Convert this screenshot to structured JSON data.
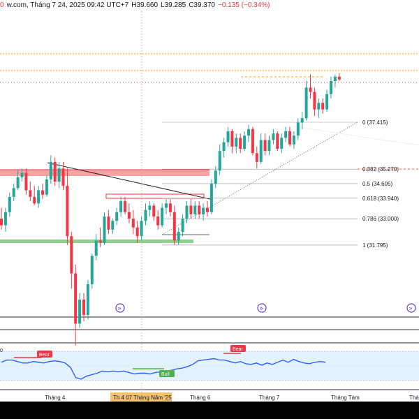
{
  "header": {
    "source": "w.com, Tháng 7 24, 2025 09:42 UTC+7",
    "open_tail": "0",
    "high": "H39.660",
    "low": "L39.285",
    "close": "C39.370",
    "change": "−0.135 (−0.34%)"
  },
  "colors": {
    "up": "#26a69a",
    "down": "#f23645",
    "fib_level": "#555555",
    "rsi_line": "#2962ff",
    "supply_zone": "#f7a3a3",
    "demand_zone": "#8ed08e",
    "bear_tag": "#f23645",
    "bull_tag": "#4caf50"
  },
  "chart_data": [
    {
      "type": "candlestick",
      "title": "",
      "x_tick_labels": [
        "Tháng 4",
        "Tháng 6",
        "Tháng 7",
        "Tháng Tám",
        "Tháng"
      ],
      "crosshair_date_label": "Th 4 07 Tháng Năm '25",
      "ylim": [
        27.2,
        43.0
      ],
      "fibonacci": [
        {
          "label": "0 (37.415)",
          "value": 37.415
        },
        {
          "label": "0.382 (35.270)",
          "value": 35.27
        },
        {
          "label": "0.5 (34.605)",
          "value": 34.605
        },
        {
          "label": "0.618 (33.940)",
          "value": 33.94
        },
        {
          "label": "0.786 (33.000)",
          "value": 33.0
        },
        {
          "label": "1 (31.795)",
          "value": 31.795
        }
      ],
      "candles": [
        [
          33.0,
          33.5,
          32.5,
          32.7
        ],
        [
          32.7,
          33.5,
          32.4,
          33.3
        ],
        [
          33.3,
          34.2,
          33.1,
          34.0
        ],
        [
          34.0,
          34.6,
          33.8,
          34.4
        ],
        [
          34.4,
          35.2,
          34.3,
          34.9
        ],
        [
          34.9,
          35.3,
          34.7,
          35.1
        ],
        [
          35.1,
          35.3,
          34.1,
          34.3
        ],
        [
          34.3,
          34.7,
          33.8,
          34.0
        ],
        [
          34.0,
          34.5,
          33.6,
          33.7
        ],
        [
          33.7,
          34.5,
          33.5,
          34.3
        ],
        [
          34.3,
          34.6,
          33.9,
          34.1
        ],
        [
          34.1,
          35.0,
          34.0,
          34.8
        ],
        [
          34.8,
          35.9,
          34.6,
          35.6
        ],
        [
          35.6,
          35.8,
          34.5,
          34.7
        ],
        [
          34.7,
          35.6,
          34.4,
          35.3
        ],
        [
          35.3,
          35.6,
          34.3,
          34.5
        ],
        [
          34.5,
          35.3,
          31.8,
          32.2
        ],
        [
          32.2,
          32.4,
          29.8,
          30.5
        ],
        [
          30.5,
          30.9,
          27.2,
          28.2
        ],
        [
          28.2,
          29.6,
          28.0,
          29.3
        ],
        [
          29.3,
          29.6,
          28.3,
          28.6
        ],
        [
          28.6,
          30.2,
          28.4,
          30.0
        ],
        [
          30.0,
          31.4,
          29.8,
          31.3
        ],
        [
          31.3,
          32.3,
          31.1,
          32.0
        ],
        [
          32.0,
          32.6,
          31.7,
          31.9
        ],
        [
          31.9,
          33.3,
          31.8,
          33.1
        ],
        [
          33.1,
          33.4,
          32.3,
          32.5
        ],
        [
          32.5,
          33.0,
          32.3,
          32.9
        ],
        [
          32.9,
          33.5,
          32.7,
          33.3
        ],
        [
          33.3,
          34.0,
          33.1,
          33.8
        ],
        [
          33.8,
          34.0,
          33.2,
          33.3
        ],
        [
          33.3,
          33.7,
          32.8,
          33.0
        ],
        [
          33.0,
          33.4,
          32.3,
          32.6
        ],
        [
          32.6,
          32.9,
          31.9,
          32.2
        ],
        [
          32.2,
          33.1,
          32.0,
          32.9
        ],
        [
          32.9,
          33.7,
          32.7,
          33.4
        ],
        [
          33.4,
          33.8,
          33.1,
          33.6
        ],
        [
          33.6,
          33.7,
          32.9,
          33.1
        ],
        [
          33.1,
          33.4,
          32.5,
          32.7
        ],
        [
          32.7,
          33.7,
          32.6,
          33.5
        ],
        [
          33.5,
          33.9,
          33.2,
          33.7
        ],
        [
          33.7,
          33.9,
          33.1,
          33.3
        ],
        [
          33.3,
          33.6,
          31.8,
          32.0
        ],
        [
          32.0,
          32.6,
          31.8,
          32.4
        ],
        [
          32.4,
          33.2,
          32.2,
          33.0
        ],
        [
          33.0,
          33.8,
          32.8,
          33.6
        ],
        [
          33.6,
          33.9,
          33.0,
          33.2
        ],
        [
          33.2,
          33.8,
          33.0,
          33.6
        ],
        [
          33.6,
          33.8,
          33.0,
          33.2
        ],
        [
          33.2,
          33.7,
          32.9,
          33.5
        ],
        [
          33.5,
          33.8,
          33.1,
          33.3
        ],
        [
          33.3,
          34.8,
          33.2,
          34.6
        ],
        [
          34.6,
          35.4,
          34.4,
          35.2
        ],
        [
          35.2,
          36.4,
          35.0,
          36.1
        ],
        [
          36.1,
          36.7,
          35.8,
          36.5
        ],
        [
          36.5,
          37.2,
          36.3,
          37.0
        ],
        [
          37.0,
          37.1,
          36.0,
          36.3
        ],
        [
          36.3,
          36.9,
          36.0,
          36.7
        ],
        [
          36.7,
          36.9,
          36.0,
          36.2
        ],
        [
          36.2,
          37.0,
          36.1,
          36.8
        ],
        [
          36.8,
          37.3,
          36.5,
          37.1
        ],
        [
          37.1,
          37.2,
          35.9,
          36.0
        ],
        [
          36.0,
          36.3,
          35.3,
          35.6
        ],
        [
          35.6,
          36.9,
          35.5,
          36.6
        ],
        [
          36.6,
          36.9,
          35.9,
          36.1
        ],
        [
          36.1,
          36.8,
          35.9,
          36.6
        ],
        [
          36.6,
          37.1,
          36.4,
          36.9
        ],
        [
          36.9,
          37.0,
          36.1,
          36.2
        ],
        [
          36.2,
          36.9,
          36.0,
          36.7
        ],
        [
          36.7,
          37.2,
          36.5,
          37.0
        ],
        [
          37.0,
          37.2,
          36.3,
          36.4
        ],
        [
          36.4,
          37.0,
          36.2,
          36.8
        ],
        [
          36.8,
          37.6,
          36.6,
          37.4
        ],
        [
          37.4,
          37.9,
          37.1,
          37.6
        ],
        [
          37.6,
          39.3,
          37.5,
          39.0
        ],
        [
          39.0,
          39.6,
          38.5,
          38.8
        ],
        [
          38.8,
          39.0,
          37.7,
          38.0
        ],
        [
          38.0,
          38.5,
          37.6,
          38.3
        ],
        [
          38.3,
          38.5,
          37.8,
          38.0
        ],
        [
          38.0,
          38.9,
          37.9,
          38.7
        ],
        [
          38.7,
          39.5,
          38.5,
          39.3
        ],
        [
          39.3,
          39.6,
          39.0,
          39.5
        ],
        [
          39.5,
          39.66,
          39.285,
          39.37
        ]
      ],
      "rsi": {
        "tags": [
          "Bear",
          "Bear",
          "Bull"
        ],
        "values": [
          55,
          58,
          58,
          56,
          54,
          54,
          56,
          55,
          54,
          56,
          57,
          56,
          54,
          48,
          34,
          32,
          36,
          38,
          40,
          43,
          42,
          43,
          42,
          43,
          41,
          39,
          40,
          40,
          39,
          41,
          42,
          43,
          44,
          46,
          47,
          49,
          52,
          57,
          58,
          59,
          60,
          58,
          58,
          56,
          54,
          56,
          53,
          52,
          54,
          51,
          54,
          52,
          55,
          58,
          55,
          59,
          56,
          54,
          53,
          55,
          56,
          55
        ]
      }
    }
  ]
}
